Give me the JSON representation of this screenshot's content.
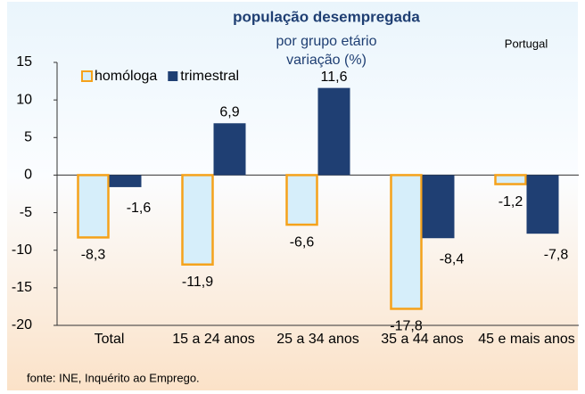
{
  "chart_data": {
    "type": "bar",
    "title": "população desempregada",
    "subtitle": [
      "por grupo etário",
      "variação (%)"
    ],
    "annotation": "Portugal",
    "source": "fonte: INE, Inquérito ao Emprego.",
    "categories": [
      "Total",
      "15 a 24 anos",
      "25 a 34 anos",
      "35 a 44 anos",
      "45 e mais anos"
    ],
    "series": [
      {
        "name": "homóloga",
        "color": "#d6eefa",
        "edge_color": "#f5a21b",
        "values": [
          -8.3,
          -11.9,
          -6.6,
          -17.8,
          -1.2
        ],
        "value_labels": [
          "-8,3",
          "-11,9",
          "-6,6",
          "-17,8",
          "-1,2"
        ]
      },
      {
        "name": "trimestral",
        "color": "#1f3f73",
        "values": [
          -1.6,
          6.9,
          11.6,
          -8.4,
          -7.8
        ],
        "value_labels": [
          "-1,6",
          "6,9",
          "11,6",
          "-8,4",
          "-7,8"
        ]
      }
    ],
    "ylim": [
      -20,
      15
    ],
    "yticks": [
      -20,
      -15,
      -10,
      -5,
      0,
      5,
      10,
      15
    ],
    "legend": "top-left"
  }
}
